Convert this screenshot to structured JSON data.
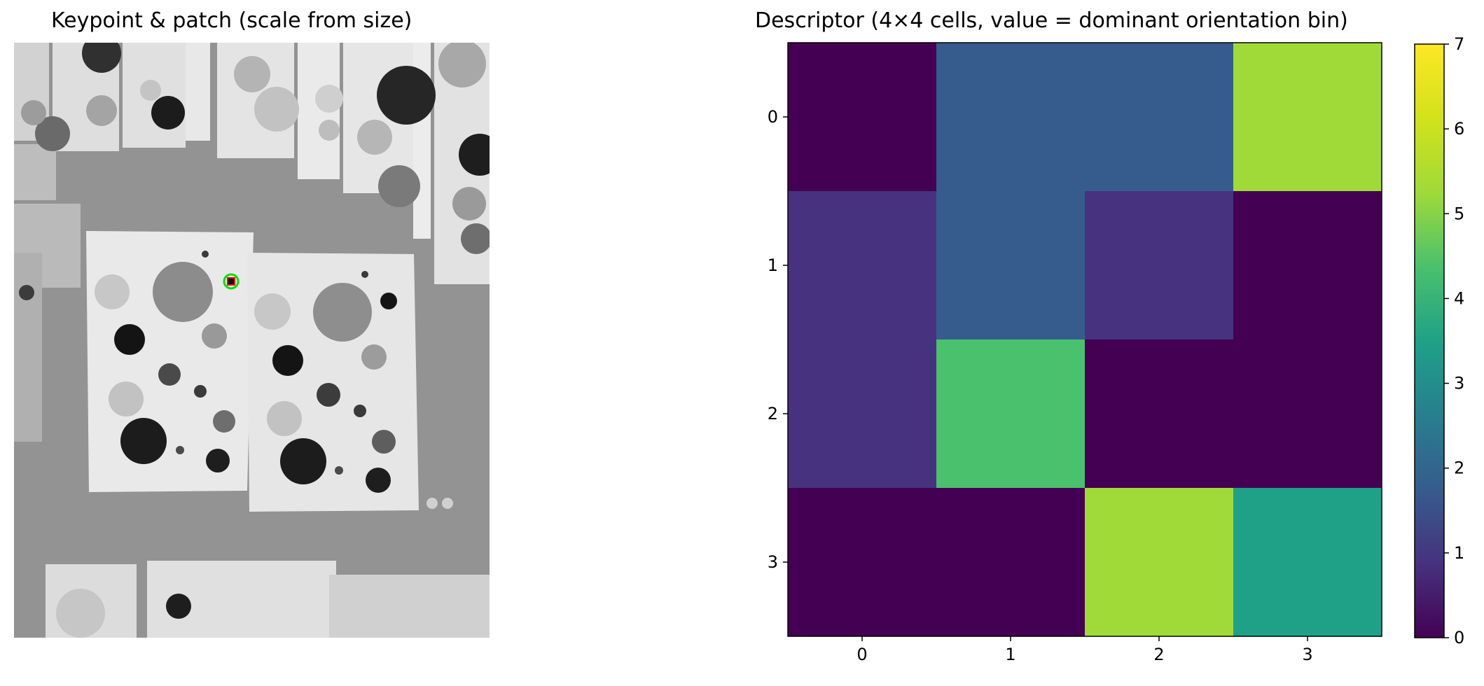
{
  "left_panel": {
    "title": "Keypoint & patch (scale from size)"
  },
  "chart_data": {
    "type": "heatmap",
    "title": "Descriptor (4×4 cells, value = dominant orientation bin)",
    "x_ticks": [
      "0",
      "1",
      "2",
      "3"
    ],
    "y_ticks": [
      "0",
      "1",
      "2",
      "3"
    ],
    "values": [
      [
        0,
        2,
        2,
        6
      ],
      [
        1,
        2,
        1,
        0
      ],
      [
        1,
        5,
        0,
        0
      ],
      [
        0,
        0,
        6,
        4
      ]
    ],
    "colormap": "viridis",
    "vmin": 0,
    "vmax": 7,
    "colorbar_ticks": [
      "0",
      "1",
      "2",
      "3",
      "4",
      "5",
      "6",
      "7"
    ]
  }
}
